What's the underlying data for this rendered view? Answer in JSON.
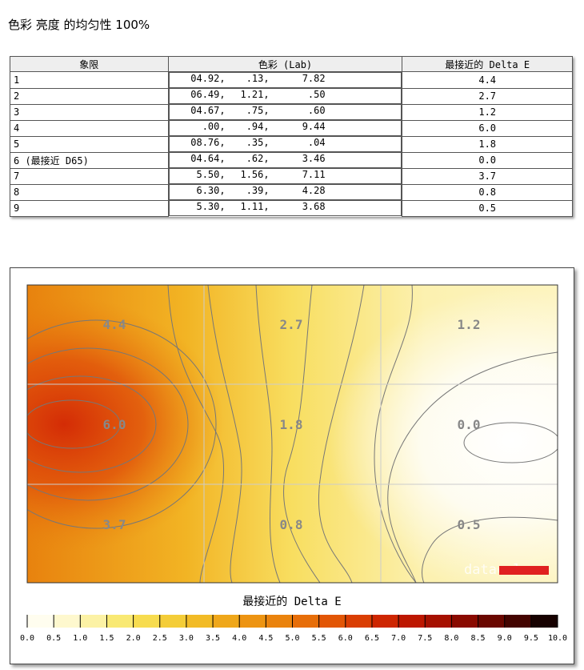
{
  "header": {
    "title": "色彩 亮度 的均匀性 100%"
  },
  "table": {
    "columns": [
      "象限",
      "色彩 (Lab)",
      "最接近的 Delta E"
    ],
    "rows": [
      [
        "1",
        "04.92,",
        ".13,",
        "7.82",
        "4.4"
      ],
      [
        "2",
        "06.49,",
        "1.21,",
        ".50",
        "2.7"
      ],
      [
        "3",
        "04.67,",
        ".75,",
        ".60",
        "1.2"
      ],
      [
        "4",
        ".00,",
        ".94,",
        "9.44",
        "6.0"
      ],
      [
        "5",
        "08.76,",
        ".35,",
        ".04",
        "1.8"
      ],
      [
        "6 (最接近 D65)",
        "04.64,",
        ".62,",
        "3.46",
        "0.0"
      ],
      [
        "7",
        "5.50,",
        "1.56,",
        "7.11",
        "3.7"
      ],
      [
        "8",
        "6.30,",
        ".39,",
        "4.28",
        "0.8"
      ],
      [
        "9",
        "5.30,",
        "1.11,",
        "3.68",
        "0.5"
      ]
    ]
  },
  "heatmap": {
    "watermark": "datacolor",
    "legend": {
      "title": "最接近的 Delta E",
      "ticks": [
        "0.0",
        "0.5",
        "1.0",
        "1.5",
        "2.0",
        "2.5",
        "3.0",
        "3.5",
        "4.0",
        "4.5",
        "5.0",
        "5.5",
        "6.0",
        "6.5",
        "7.0",
        "7.5",
        "8.0",
        "8.5",
        "9.0",
        "9.5",
        "10.0"
      ]
    }
  }
}
